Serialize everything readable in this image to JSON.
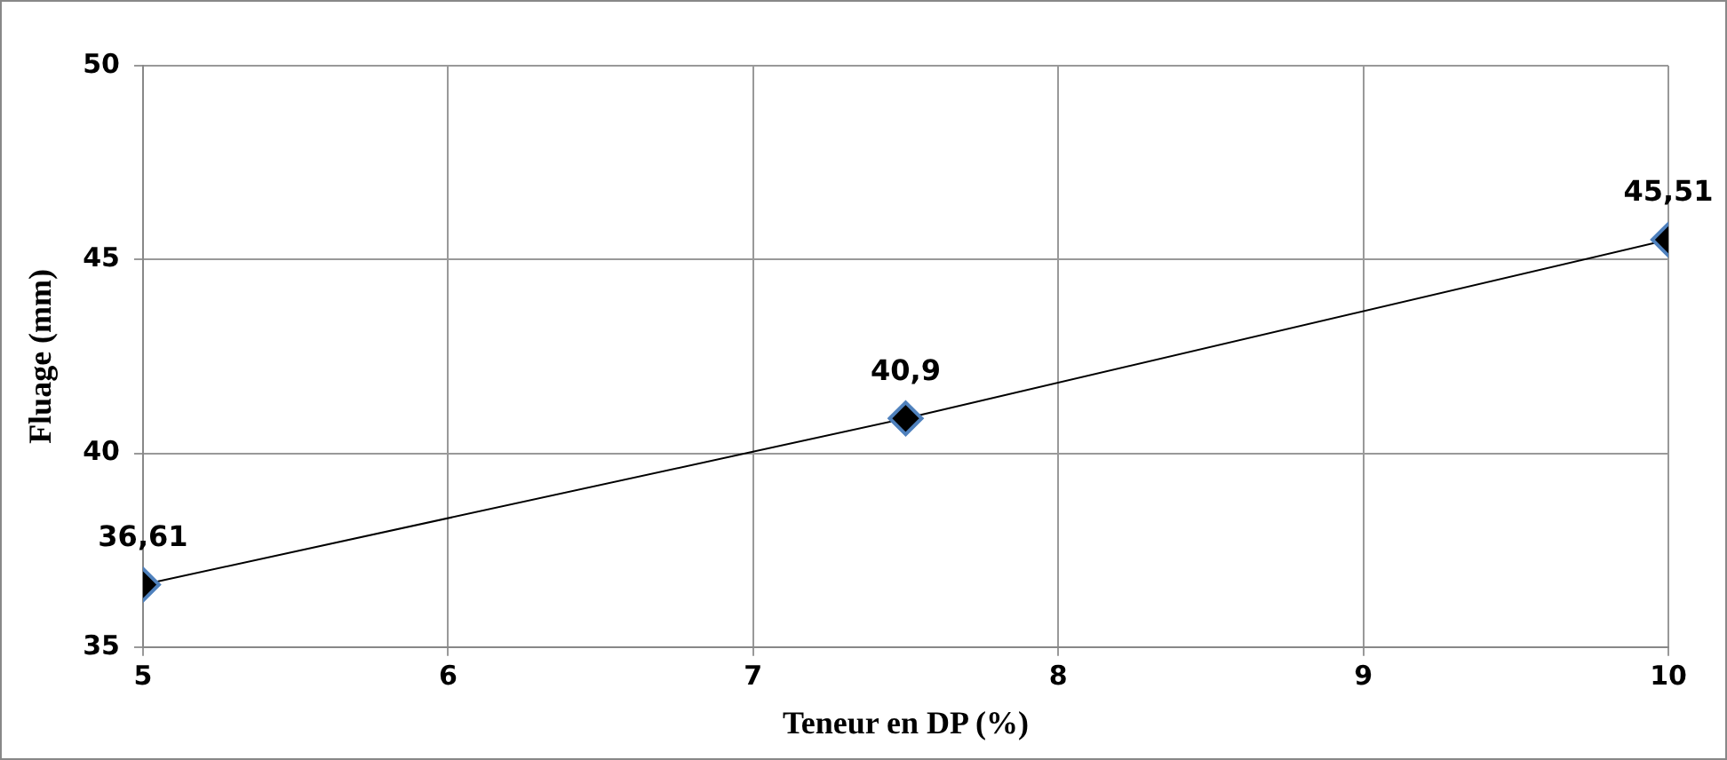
{
  "chart_data": {
    "type": "line",
    "xlabel": "Teneur en DP (%)",
    "ylabel": "Fluage (mm)",
    "x": [
      5,
      7.5,
      10
    ],
    "series": [
      {
        "color": "#000000",
        "values": [
          36.61,
          40.9,
          45.51
        ],
        "value_labels": [
          "36,61",
          "40,9",
          "45,51"
        ]
      }
    ],
    "xlim": [
      5,
      10
    ],
    "xticks": [
      5,
      6,
      7,
      8,
      9,
      10
    ],
    "ylim": [
      35,
      50
    ],
    "yticks": [
      35,
      40,
      45,
      50
    ],
    "grid": true,
    "legend": false,
    "marker": "diamond",
    "line_style": "solid"
  }
}
